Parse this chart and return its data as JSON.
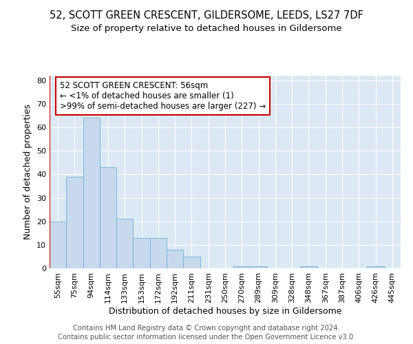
{
  "title": "52, SCOTT GREEN CRESCENT, GILDERSOME, LEEDS, LS27 7DF",
  "subtitle": "Size of property relative to detached houses in Gildersome",
  "xlabel": "Distribution of detached houses by size in Gildersome",
  "ylabel": "Number of detached properties",
  "footer1": "Contains HM Land Registry data © Crown copyright and database right 2024.",
  "footer2": "Contains public sector information licensed under the Open Government Licence v3.0.",
  "categories": [
    "55sqm",
    "75sqm",
    "94sqm",
    "114sqm",
    "133sqm",
    "153sqm",
    "172sqm",
    "192sqm",
    "211sqm",
    "231sqm",
    "250sqm",
    "270sqm",
    "289sqm",
    "309sqm",
    "328sqm",
    "348sqm",
    "367sqm",
    "387sqm",
    "406sqm",
    "426sqm",
    "445sqm"
  ],
  "values": [
    20,
    39,
    64,
    43,
    21,
    13,
    13,
    8,
    5,
    0,
    0,
    1,
    1,
    0,
    0,
    1,
    0,
    0,
    0,
    1,
    0
  ],
  "bar_color": "#c8d9ed",
  "bar_edgecolor": "#6baed6",
  "annotation_line1": "52 SCOTT GREEN CRESCENT: 56sqm",
  "annotation_line2": "← <1% of detached houses are smaller (1)",
  "annotation_line3": ">99% of semi-detached houses are larger (227) →",
  "annotation_box_color": "white",
  "annotation_box_edgecolor": "#cc0000",
  "ylim": [
    0,
    82
  ],
  "yticks": [
    0,
    10,
    20,
    30,
    40,
    50,
    60,
    70,
    80
  ],
  "background_color": "#dce9f5",
  "grid_color": "white",
  "title_fontsize": 10.5,
  "subtitle_fontsize": 9.5,
  "axis_label_fontsize": 9,
  "tick_fontsize": 8,
  "annotation_fontsize": 8.5,
  "footer_fontsize": 7.2,
  "red_line_color": "#cc0000"
}
